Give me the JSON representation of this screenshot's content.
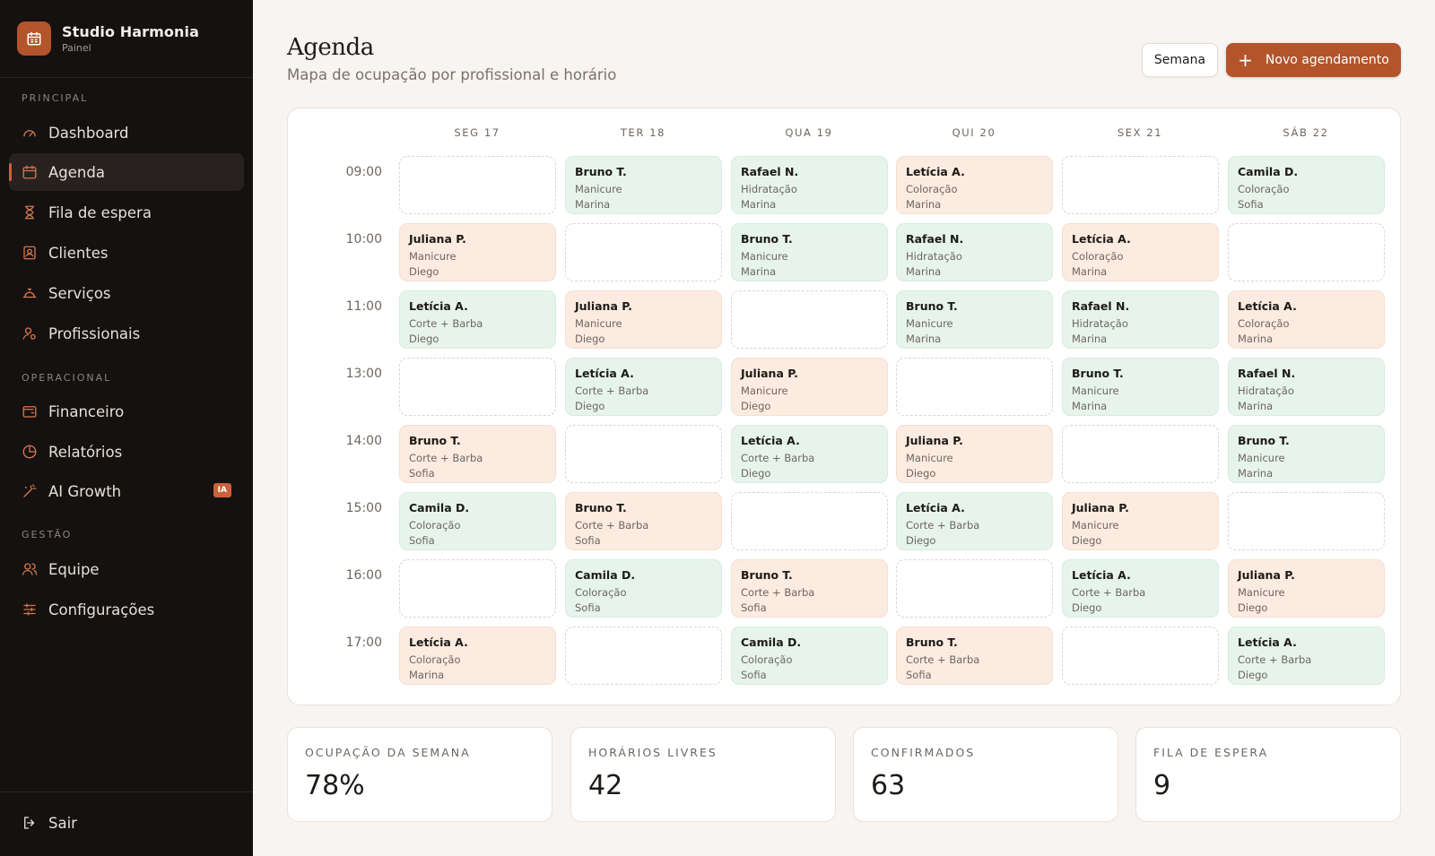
{
  "sidebar": {
    "brand": {
      "title": "Studio Harmonia",
      "subtitle": "Painel"
    },
    "sections": [
      {
        "label": "PRINCIPAL"
      },
      {
        "label": "OPERACIONAL"
      },
      {
        "label": "GESTÃO"
      }
    ],
    "items": [
      {
        "label": "Dashboard",
        "icon": "gauge-icon"
      },
      {
        "label": "Agenda",
        "icon": "calendar-icon",
        "active": true
      },
      {
        "label": "Fila de espera",
        "icon": "hourglass-icon"
      },
      {
        "label": "Clientes",
        "icon": "contact-icon"
      },
      {
        "label": "Serviços",
        "icon": "bell-service-icon"
      },
      {
        "label": "Profissionais",
        "icon": "user-gear-icon"
      },
      {
        "label": "Financeiro",
        "icon": "wallet-icon"
      },
      {
        "label": "Relatórios",
        "icon": "pie-chart-icon"
      },
      {
        "label": "AI Growth",
        "icon": "magic-wand-icon",
        "badge": "IA"
      },
      {
        "label": "Equipe",
        "icon": "users-icon"
      },
      {
        "label": "Configurações",
        "icon": "sliders-icon"
      }
    ],
    "logout": {
      "label": "Sair",
      "icon": "logout-icon"
    }
  },
  "header": {
    "title": "Agenda",
    "subtitle": "Mapa de ocupação por profissional e horário",
    "week_button": "Semana",
    "new_button": "Novo agendamento"
  },
  "colors": {
    "accent": "#b3542a",
    "green_slot": "#e6f4ec",
    "peach_slot": "#fcebe0",
    "sidebar_bg": "#141110"
  },
  "calendar": {
    "days": [
      "SEG 17",
      "TER 18",
      "QUA 19",
      "QUI 20",
      "SEX 21",
      "SÁB 22"
    ],
    "times": [
      "09:00",
      "10:00",
      "11:00",
      "13:00",
      "14:00",
      "15:00",
      "16:00",
      "17:00"
    ],
    "rows": [
      [
        null,
        {
          "client": "Bruno T.",
          "service": "Manicure",
          "pro": "Marina",
          "tone": "green"
        },
        {
          "client": "Rafael N.",
          "service": "Hidratação",
          "pro": "Marina",
          "tone": "green"
        },
        {
          "client": "Letícia A.",
          "service": "Coloração",
          "pro": "Marina",
          "tone": "peach"
        },
        null,
        {
          "client": "Camila D.",
          "service": "Coloração",
          "pro": "Sofia",
          "tone": "green"
        }
      ],
      [
        {
          "client": "Juliana P.",
          "service": "Manicure",
          "pro": "Diego",
          "tone": "peach"
        },
        null,
        {
          "client": "Bruno T.",
          "service": "Manicure",
          "pro": "Marina",
          "tone": "green"
        },
        {
          "client": "Rafael N.",
          "service": "Hidratação",
          "pro": "Marina",
          "tone": "green"
        },
        {
          "client": "Letícia A.",
          "service": "Coloração",
          "pro": "Marina",
          "tone": "peach"
        },
        null
      ],
      [
        {
          "client": "Letícia A.",
          "service": "Corte + Barba",
          "pro": "Diego",
          "tone": "green"
        },
        {
          "client": "Juliana P.",
          "service": "Manicure",
          "pro": "Diego",
          "tone": "peach"
        },
        null,
        {
          "client": "Bruno T.",
          "service": "Manicure",
          "pro": "Marina",
          "tone": "green"
        },
        {
          "client": "Rafael N.",
          "service": "Hidratação",
          "pro": "Marina",
          "tone": "green"
        },
        {
          "client": "Letícia A.",
          "service": "Coloração",
          "pro": "Marina",
          "tone": "peach"
        }
      ],
      [
        null,
        {
          "client": "Letícia A.",
          "service": "Corte + Barba",
          "pro": "Diego",
          "tone": "green"
        },
        {
          "client": "Juliana P.",
          "service": "Manicure",
          "pro": "Diego",
          "tone": "peach"
        },
        null,
        {
          "client": "Bruno T.",
          "service": "Manicure",
          "pro": "Marina",
          "tone": "green"
        },
        {
          "client": "Rafael N.",
          "service": "Hidratação",
          "pro": "Marina",
          "tone": "green"
        }
      ],
      [
        {
          "client": "Bruno T.",
          "service": "Corte + Barba",
          "pro": "Sofia",
          "tone": "peach"
        },
        null,
        {
          "client": "Letícia A.",
          "service": "Corte + Barba",
          "pro": "Diego",
          "tone": "green"
        },
        {
          "client": "Juliana P.",
          "service": "Manicure",
          "pro": "Diego",
          "tone": "peach"
        },
        null,
        {
          "client": "Bruno T.",
          "service": "Manicure",
          "pro": "Marina",
          "tone": "green"
        }
      ],
      [
        {
          "client": "Camila D.",
          "service": "Coloração",
          "pro": "Sofia",
          "tone": "green"
        },
        {
          "client": "Bruno T.",
          "service": "Corte + Barba",
          "pro": "Sofia",
          "tone": "peach"
        },
        null,
        {
          "client": "Letícia A.",
          "service": "Corte + Barba",
          "pro": "Diego",
          "tone": "green"
        },
        {
          "client": "Juliana P.",
          "service": "Manicure",
          "pro": "Diego",
          "tone": "peach"
        },
        null
      ],
      [
        null,
        {
          "client": "Camila D.",
          "service": "Coloração",
          "pro": "Sofia",
          "tone": "green"
        },
        {
          "client": "Bruno T.",
          "service": "Corte + Barba",
          "pro": "Sofia",
          "tone": "peach"
        },
        null,
        {
          "client": "Letícia A.",
          "service": "Corte + Barba",
          "pro": "Diego",
          "tone": "green"
        },
        {
          "client": "Juliana P.",
          "service": "Manicure",
          "pro": "Diego",
          "tone": "peach"
        }
      ],
      [
        {
          "client": "Letícia A.",
          "service": "Coloração",
          "pro": "Marina",
          "tone": "peach"
        },
        null,
        {
          "client": "Camila D.",
          "service": "Coloração",
          "pro": "Sofia",
          "tone": "green"
        },
        {
          "client": "Bruno T.",
          "service": "Corte + Barba",
          "pro": "Sofia",
          "tone": "peach"
        },
        null,
        {
          "client": "Letícia A.",
          "service": "Corte + Barba",
          "pro": "Diego",
          "tone": "green"
        }
      ]
    ]
  },
  "stats": [
    {
      "label": "OCUPAÇÃO DA SEMANA",
      "value": "78%"
    },
    {
      "label": "HORÁRIOS LIVRES",
      "value": "42"
    },
    {
      "label": "CONFIRMADOS",
      "value": "63"
    },
    {
      "label": "FILA DE ESPERA",
      "value": "9"
    }
  ]
}
